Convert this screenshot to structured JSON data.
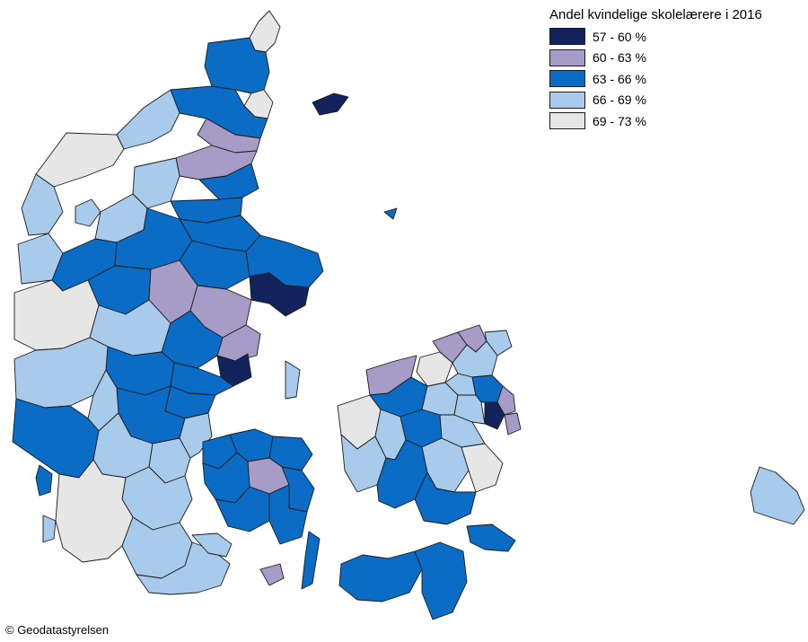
{
  "legend": {
    "title": "Andel kvindelige skolelærere i 2016",
    "classes": [
      {
        "label": "57 - 60 %",
        "color": "#13235e"
      },
      {
        "label": "60 - 63 %",
        "color": "#a79cc8"
      },
      {
        "label": "63 - 66 %",
        "color": "#0a6cc4"
      },
      {
        "label": "66 - 69 %",
        "color": "#a8caeb"
      },
      {
        "label": "69 - 73 %",
        "color": "#e6e6e6"
      }
    ]
  },
  "credit": "© Geodatastyrelsen"
}
